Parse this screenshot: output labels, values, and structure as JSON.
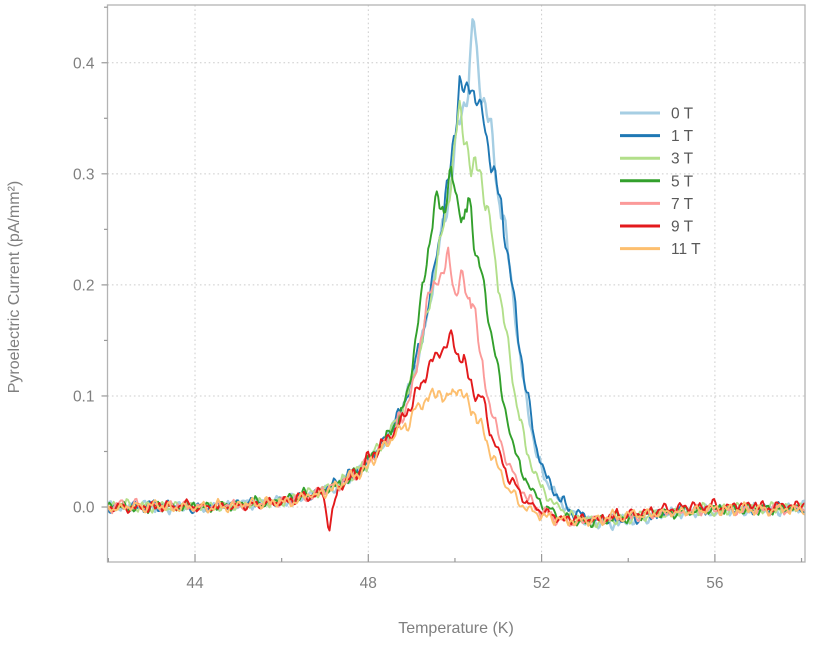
{
  "chart_data": {
    "type": "line",
    "title": "",
    "xlabel": "Temperature (K)",
    "ylabel": "Pyroelectric Current (pA/mm²)",
    "xlim": [
      41.98,
      58.08
    ],
    "ylim": [
      -0.0495,
      0.452
    ],
    "x_major_ticks": [
      44,
      48,
      52,
      56
    ],
    "x_minor_ticks": [
      42,
      46,
      50,
      54,
      58
    ],
    "x_tick_labels": [
      "44",
      "48",
      "52",
      "56"
    ],
    "y_major_ticks": [
      0.0,
      0.1,
      0.2,
      0.3,
      0.4
    ],
    "y_minor_ticks": [
      0.05,
      0.15,
      0.25,
      0.35,
      0.45
    ],
    "y_tick_labels": [
      "0.0",
      "0.1",
      "0.2",
      "0.3",
      "0.4"
    ],
    "grid": "dotted major gridlines both axes",
    "legend_position": "upper-right inside plot",
    "series": [
      {
        "name": "0 T",
        "color": "#a6cee3",
        "peak_T": 50.4,
        "peak_I": 0.448,
        "line_width": 2.4,
        "points": [
          [
            41.98,
            0.0
          ],
          [
            42.6,
            0.001
          ],
          [
            43.2,
            0.0
          ],
          [
            43.8,
            0.001
          ],
          [
            44.4,
            0.0
          ],
          [
            45.0,
            0.002
          ],
          [
            45.6,
            0.004
          ],
          [
            46.2,
            0.007
          ],
          [
            46.8,
            0.012
          ],
          [
            47.3,
            0.02
          ],
          [
            47.8,
            0.033
          ],
          [
            48.1,
            0.046
          ],
          [
            48.4,
            0.06
          ],
          [
            48.8,
            0.088
          ],
          [
            49.2,
            0.14
          ],
          [
            49.5,
            0.205
          ],
          [
            49.8,
            0.27
          ],
          [
            50.0,
            0.32
          ],
          [
            50.15,
            0.355
          ],
          [
            50.3,
            0.375
          ],
          [
            50.42,
            0.448
          ],
          [
            50.55,
            0.39
          ],
          [
            50.7,
            0.36
          ],
          [
            50.85,
            0.33
          ],
          [
            51.0,
            0.285
          ],
          [
            51.15,
            0.25
          ],
          [
            51.35,
            0.185
          ],
          [
            51.55,
            0.12
          ],
          [
            51.8,
            0.062
          ],
          [
            52.05,
            0.028
          ],
          [
            52.35,
            0.008
          ],
          [
            52.7,
            -0.005
          ],
          [
            53.1,
            -0.013
          ],
          [
            53.6,
            -0.014
          ],
          [
            54.2,
            -0.009
          ],
          [
            54.9,
            -0.006
          ],
          [
            55.7,
            -0.003
          ],
          [
            56.5,
            -0.001
          ],
          [
            57.3,
            -0.002
          ],
          [
            58.08,
            -0.001
          ]
        ]
      },
      {
        "name": "1 T",
        "color": "#1f78b4",
        "peak_T": 50.1,
        "peak_I": 0.39,
        "line_width": 1.9,
        "points": [
          [
            41.98,
            0.0
          ],
          [
            42.6,
            0.0
          ],
          [
            43.2,
            0.001
          ],
          [
            43.8,
            0.0
          ],
          [
            44.4,
            0.001
          ],
          [
            45.0,
            0.002
          ],
          [
            45.6,
            0.004
          ],
          [
            46.2,
            0.007
          ],
          [
            46.8,
            0.012
          ],
          [
            47.3,
            0.021
          ],
          [
            47.8,
            0.034
          ],
          [
            48.1,
            0.047
          ],
          [
            48.4,
            0.061
          ],
          [
            48.8,
            0.09
          ],
          [
            49.2,
            0.145
          ],
          [
            49.5,
            0.21
          ],
          [
            49.8,
            0.275
          ],
          [
            50.0,
            0.34
          ],
          [
            50.1,
            0.385
          ],
          [
            50.25,
            0.37
          ],
          [
            50.4,
            0.378
          ],
          [
            50.55,
            0.365
          ],
          [
            50.7,
            0.34
          ],
          [
            50.85,
            0.315
          ],
          [
            51.0,
            0.285
          ],
          [
            51.2,
            0.235
          ],
          [
            51.4,
            0.175
          ],
          [
            51.6,
            0.115
          ],
          [
            51.85,
            0.06
          ],
          [
            52.1,
            0.028
          ],
          [
            52.4,
            0.008
          ],
          [
            52.75,
            -0.006
          ],
          [
            53.2,
            -0.012
          ],
          [
            53.7,
            -0.012
          ],
          [
            54.4,
            -0.008
          ],
          [
            55.2,
            -0.004
          ],
          [
            56.0,
            -0.002
          ],
          [
            57.0,
            -0.002
          ],
          [
            58.08,
            -0.002
          ]
        ]
      },
      {
        "name": "3 T",
        "color": "#b2df8a",
        "peak_T": 50.12,
        "peak_I": 0.357,
        "line_width": 1.9,
        "points": [
          [
            41.98,
            0.0
          ],
          [
            42.6,
            0.001
          ],
          [
            43.2,
            0.0
          ],
          [
            43.8,
            0.001
          ],
          [
            44.4,
            0.001
          ],
          [
            45.0,
            0.002
          ],
          [
            45.6,
            0.004
          ],
          [
            46.2,
            0.008
          ],
          [
            46.8,
            0.013
          ],
          [
            47.3,
            0.021
          ],
          [
            47.8,
            0.033
          ],
          [
            48.1,
            0.046
          ],
          [
            48.4,
            0.06
          ],
          [
            48.8,
            0.087
          ],
          [
            49.2,
            0.14
          ],
          [
            49.5,
            0.205
          ],
          [
            49.8,
            0.268
          ],
          [
            50.0,
            0.325
          ],
          [
            50.12,
            0.357
          ],
          [
            50.25,
            0.335
          ],
          [
            50.4,
            0.3
          ],
          [
            50.55,
            0.315
          ],
          [
            50.7,
            0.275
          ],
          [
            50.85,
            0.245
          ],
          [
            51.0,
            0.205
          ],
          [
            51.2,
            0.15
          ],
          [
            51.4,
            0.1
          ],
          [
            51.65,
            0.052
          ],
          [
            51.9,
            0.024
          ],
          [
            52.2,
            0.006
          ],
          [
            52.55,
            -0.006
          ],
          [
            53.0,
            -0.013
          ],
          [
            53.5,
            -0.014
          ],
          [
            54.1,
            -0.009
          ],
          [
            54.9,
            -0.006
          ],
          [
            55.7,
            -0.003
          ],
          [
            56.6,
            -0.002
          ],
          [
            57.4,
            -0.001
          ],
          [
            58.08,
            -0.001
          ]
        ]
      },
      {
        "name": "5 T",
        "color": "#33a02c",
        "peak_T": 49.9,
        "peak_I": 0.3,
        "line_width": 1.9,
        "points": [
          [
            41.98,
            0.0
          ],
          [
            42.6,
            0.0
          ],
          [
            43.2,
            0.001
          ],
          [
            43.8,
            0.001
          ],
          [
            44.4,
            0.0
          ],
          [
            45.0,
            0.002
          ],
          [
            45.6,
            0.004
          ],
          [
            46.2,
            0.007
          ],
          [
            46.8,
            0.012
          ],
          [
            47.3,
            0.02
          ],
          [
            47.8,
            0.033
          ],
          [
            48.1,
            0.046
          ],
          [
            48.4,
            0.06
          ],
          [
            48.8,
            0.085
          ],
          [
            49.1,
            0.15
          ],
          [
            49.35,
            0.225
          ],
          [
            49.6,
            0.283
          ],
          [
            49.75,
            0.265
          ],
          [
            49.9,
            0.3
          ],
          [
            50.05,
            0.272
          ],
          [
            50.2,
            0.258
          ],
          [
            50.32,
            0.276
          ],
          [
            50.45,
            0.238
          ],
          [
            50.6,
            0.212
          ],
          [
            50.75,
            0.175
          ],
          [
            50.9,
            0.148
          ],
          [
            51.1,
            0.1
          ],
          [
            51.3,
            0.064
          ],
          [
            51.55,
            0.031
          ],
          [
            51.8,
            0.012
          ],
          [
            52.1,
            -0.001
          ],
          [
            52.5,
            -0.01
          ],
          [
            53.0,
            -0.013
          ],
          [
            53.5,
            -0.012
          ],
          [
            54.2,
            -0.008
          ],
          [
            55.0,
            -0.005
          ],
          [
            55.9,
            -0.003
          ],
          [
            56.8,
            -0.002
          ],
          [
            57.6,
            -0.001
          ],
          [
            58.08,
            -0.001
          ]
        ]
      },
      {
        "name": "7 T",
        "color": "#fb9a99",
        "peak_T": 49.84,
        "peak_I": 0.222,
        "line_width": 1.9,
        "points": [
          [
            41.98,
            0.0
          ],
          [
            42.6,
            0.001
          ],
          [
            43.2,
            0.0
          ],
          [
            43.8,
            0.0
          ],
          [
            44.4,
            0.001
          ],
          [
            45.0,
            0.002
          ],
          [
            45.6,
            0.004
          ],
          [
            46.2,
            0.007
          ],
          [
            46.8,
            0.012
          ],
          [
            47.3,
            0.02
          ],
          [
            47.8,
            0.032
          ],
          [
            48.1,
            0.045
          ],
          [
            48.4,
            0.059
          ],
          [
            48.8,
            0.082
          ],
          [
            49.1,
            0.12
          ],
          [
            49.35,
            0.185
          ],
          [
            49.6,
            0.208
          ],
          [
            49.84,
            0.222
          ],
          [
            50.0,
            0.196
          ],
          [
            50.12,
            0.212
          ],
          [
            50.28,
            0.182
          ],
          [
            50.42,
            0.19
          ],
          [
            50.6,
            0.13
          ],
          [
            50.8,
            0.095
          ],
          [
            51.0,
            0.065
          ],
          [
            51.2,
            0.042
          ],
          [
            51.45,
            0.02
          ],
          [
            51.7,
            0.006
          ],
          [
            52.0,
            -0.004
          ],
          [
            52.4,
            -0.012
          ],
          [
            52.9,
            -0.014
          ],
          [
            53.5,
            -0.011
          ],
          [
            54.2,
            -0.008
          ],
          [
            55.0,
            -0.005
          ],
          [
            55.9,
            -0.003
          ],
          [
            56.8,
            -0.002
          ],
          [
            57.6,
            -0.002
          ],
          [
            58.08,
            -0.002
          ]
        ]
      },
      {
        "name": "9 T",
        "color": "#e31a1c",
        "peak_T": 49.93,
        "peak_I": 0.15,
        "line_width": 1.9,
        "points": [
          [
            41.98,
            0.0
          ],
          [
            42.6,
            0.0
          ],
          [
            43.2,
            0.0
          ],
          [
            43.8,
            0.001
          ],
          [
            44.4,
            0.0
          ],
          [
            45.0,
            0.001
          ],
          [
            45.6,
            0.003
          ],
          [
            46.2,
            0.007
          ],
          [
            46.6,
            0.01
          ],
          [
            46.95,
            0.014
          ],
          [
            47.1,
            -0.018
          ],
          [
            47.3,
            0.016
          ],
          [
            47.8,
            0.034
          ],
          [
            48.1,
            0.046
          ],
          [
            48.4,
            0.058
          ],
          [
            48.8,
            0.08
          ],
          [
            49.1,
            0.102
          ],
          [
            49.4,
            0.128
          ],
          [
            49.7,
            0.143
          ],
          [
            49.93,
            0.15
          ],
          [
            50.1,
            0.138
          ],
          [
            50.3,
            0.12
          ],
          [
            50.5,
            0.098
          ],
          [
            50.65,
            0.096
          ],
          [
            50.8,
            0.072
          ],
          [
            51.0,
            0.048
          ],
          [
            51.2,
            0.03
          ],
          [
            51.45,
            0.013
          ],
          [
            51.7,
            0.002
          ],
          [
            52.0,
            -0.005
          ],
          [
            52.45,
            -0.011
          ],
          [
            53.0,
            -0.012
          ],
          [
            53.6,
            -0.009
          ],
          [
            54.3,
            -0.005
          ],
          [
            55.1,
            -0.001
          ],
          [
            56.0,
            0.001
          ],
          [
            57.0,
            0.001
          ],
          [
            58.08,
            0.001
          ]
        ]
      },
      {
        "name": "11 T",
        "color": "#fdbf6f",
        "peak_T": 50.05,
        "peak_I": 0.108,
        "line_width": 1.9,
        "points": [
          [
            41.98,
            0.0
          ],
          [
            42.6,
            0.0
          ],
          [
            43.2,
            0.001
          ],
          [
            43.8,
            0.0
          ],
          [
            44.4,
            0.001
          ],
          [
            45.0,
            0.002
          ],
          [
            45.6,
            0.003
          ],
          [
            46.2,
            0.006
          ],
          [
            46.8,
            0.011
          ],
          [
            47.3,
            0.019
          ],
          [
            47.8,
            0.031
          ],
          [
            48.1,
            0.043
          ],
          [
            48.4,
            0.055
          ],
          [
            48.8,
            0.072
          ],
          [
            49.1,
            0.086
          ],
          [
            49.4,
            0.099
          ],
          [
            49.65,
            0.103
          ],
          [
            49.85,
            0.097
          ],
          [
            50.05,
            0.108
          ],
          [
            50.25,
            0.097
          ],
          [
            50.45,
            0.086
          ],
          [
            50.65,
            0.065
          ],
          [
            50.85,
            0.047
          ],
          [
            51.05,
            0.03
          ],
          [
            51.3,
            0.013
          ],
          [
            51.55,
            0.003
          ],
          [
            51.85,
            -0.005
          ],
          [
            52.2,
            -0.01
          ],
          [
            52.7,
            -0.013
          ],
          [
            53.3,
            -0.011
          ],
          [
            54.0,
            -0.008
          ],
          [
            54.8,
            -0.005
          ],
          [
            55.7,
            -0.003
          ],
          [
            56.6,
            -0.002
          ],
          [
            57.5,
            -0.002
          ],
          [
            58.08,
            -0.002
          ]
        ]
      }
    ]
  },
  "legend": {
    "entries": [
      {
        "label": "0 T",
        "color": "#a6cee3"
      },
      {
        "label": "1 T",
        "color": "#1f78b4"
      },
      {
        "label": "3 T",
        "color": "#b2df8a"
      },
      {
        "label": "5 T",
        "color": "#33a02c"
      },
      {
        "label": "7 T",
        "color": "#fb9a99"
      },
      {
        "label": "9 T",
        "color": "#e31a1c"
      },
      {
        "label": "11 T",
        "color": "#fdbf6f"
      }
    ]
  },
  "colors": {
    "background": "#ffffff",
    "plot_frame": "#b3b3b3",
    "tick": "#999999",
    "grid": "#cccccc",
    "tick_label": "#7f7f7f",
    "axis_title": "#7f7f7f",
    "legend_text": "#595959"
  }
}
